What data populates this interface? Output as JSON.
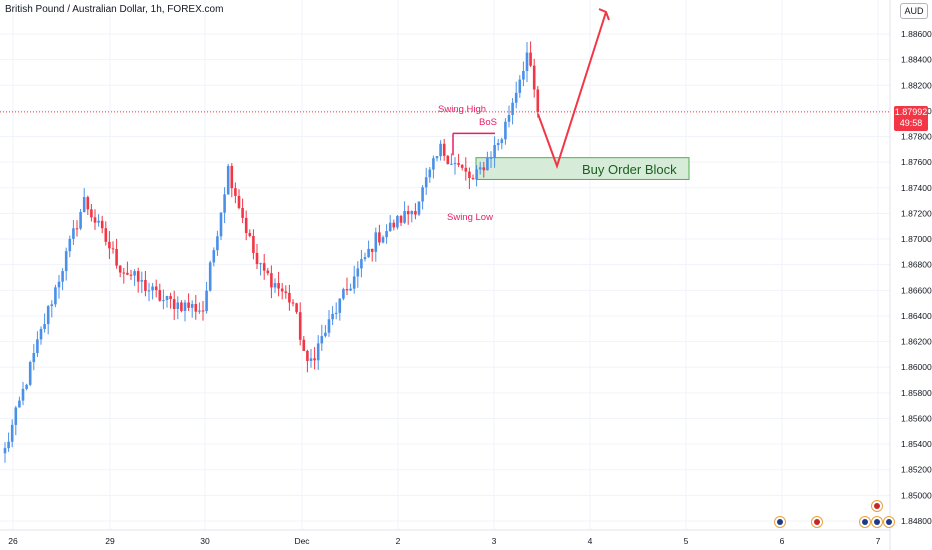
{
  "header": {
    "title": "British Pound / Australian Dollar, 1h, FOREX.com",
    "currency": "AUD"
  },
  "price_tag": {
    "price": "1.87992",
    "countdown": "49:58"
  },
  "annotations": {
    "swing_high": "Swing High",
    "bos": "BoS",
    "swing_low": "Swing Low",
    "order_block": "Buy Order Block"
  },
  "colors": {
    "up": "#4a8fe8",
    "down": "#f23645",
    "arrow": "#f23645",
    "zone_fill": "#d6ecd8",
    "zone_border": "#4caf50",
    "current_line": "#f23645"
  },
  "chart_data": {
    "type": "candlestick",
    "title": "British Pound / Australian Dollar, 1h, FOREX.com",
    "x_tick_labels": [
      "26",
      "29",
      "30",
      "Dec",
      "2",
      "3",
      "4",
      "5",
      "6",
      "7"
    ],
    "y_tick_labels": [
      "1.88600",
      "1.88400",
      "1.88200",
      "1.88000",
      "1.87800",
      "1.87600",
      "1.87400",
      "1.87200",
      "1.87000",
      "1.86800",
      "1.86600",
      "1.86400",
      "1.86200",
      "1.86000",
      "1.85800",
      "1.85600",
      "1.85400",
      "1.85200",
      "1.85000",
      "1.84800"
    ],
    "ylim": [
      1.8475,
      1.888
    ],
    "current_price": 1.87992,
    "key_points": [
      {
        "x": 0,
        "close": 1.8535
      },
      {
        "x": 10,
        "close": 1.8627
      },
      {
        "x": 22,
        "close": 1.873
      },
      {
        "x": 32,
        "close": 1.8678
      },
      {
        "x": 44,
        "close": 1.8652
      },
      {
        "x": 55,
        "close": 1.8645
      },
      {
        "x": 62,
        "close": 1.8755
      },
      {
        "x": 70,
        "close": 1.868
      },
      {
        "x": 80,
        "close": 1.865
      },
      {
        "x": 84,
        "close": 1.86
      },
      {
        "x": 92,
        "close": 1.8645
      },
      {
        "x": 103,
        "close": 1.87
      },
      {
        "x": 114,
        "close": 1.8725
      },
      {
        "x": 121,
        "close": 1.877
      },
      {
        "x": 130,
        "close": 1.8745
      },
      {
        "x": 138,
        "close": 1.878
      },
      {
        "x": 145,
        "close": 1.8845
      },
      {
        "x": 148,
        "close": 1.8799
      }
    ],
    "zones": [
      {
        "label": "Buy Order Block",
        "start_x": 130,
        "end_x": 190,
        "low": 1.87465,
        "high": 1.87635
      }
    ],
    "levels": [
      {
        "label": "BoS",
        "start_x": 124,
        "end_x": 137,
        "price": 1.87825
      }
    ],
    "projection": [
      {
        "x": 148,
        "price": 1.8799
      },
      {
        "x": 154,
        "price": 1.8757
      },
      {
        "x": 167,
        "price": 1.888
      }
    ]
  }
}
